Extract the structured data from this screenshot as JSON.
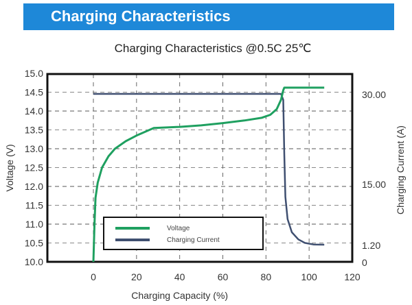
{
  "banner": {
    "title": "Charging Characteristics"
  },
  "colors": {
    "banner": "#1e88d8",
    "voltage": "#1fa060",
    "current": "#3f4f70"
  },
  "chart_data": {
    "type": "line",
    "title": "Charging Characteristics @0.5C 25℃",
    "xlabel": "Charging Capacity (%)",
    "ylabel": "Voltage (V)",
    "y2label": "Charging Current (A)",
    "xlim": [
      -20,
      120
    ],
    "ylim": [
      10.0,
      15.0
    ],
    "x_ticks": [
      "0",
      "20",
      "40",
      "60",
      "80",
      "100",
      "120"
    ],
    "y_ticks": [
      "10.0",
      "10.5",
      "11.0",
      "11.5",
      "12.0",
      "12.5",
      "13.0",
      "13.5",
      "14.0",
      "14.5",
      "15.0"
    ],
    "y2_ticks": [
      "0",
      "1.20",
      "15.00",
      "30.00"
    ],
    "grid": true,
    "legend_position": "lower-left inside",
    "series": [
      {
        "name": "Voltage",
        "axis": "left",
        "x": [
          0,
          0.5,
          1,
          2,
          4,
          7,
          10,
          15,
          20,
          28,
          40,
          50,
          60,
          70,
          78,
          82,
          85,
          87,
          88,
          88.5,
          100,
          107
        ],
        "values": [
          10.0,
          11.0,
          11.7,
          12.1,
          12.5,
          12.8,
          13.0,
          13.2,
          13.35,
          13.55,
          13.58,
          13.62,
          13.68,
          13.75,
          13.82,
          13.9,
          14.05,
          14.3,
          14.55,
          14.62,
          14.62,
          14.62
        ]
      },
      {
        "name": "Charging Current",
        "axis": "right",
        "x": [
          0,
          87,
          88,
          88.5,
          89,
          90,
          92,
          95,
          98,
          102,
          107
        ],
        "values": [
          30.0,
          30.0,
          29.0,
          20.0,
          12.0,
          7.0,
          4.0,
          2.4,
          1.6,
          1.25,
          1.2
        ]
      }
    ]
  }
}
